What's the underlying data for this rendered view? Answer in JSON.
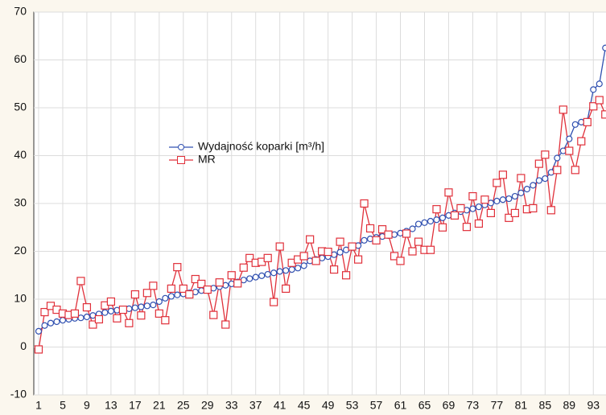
{
  "chart_data": {
    "type": "line",
    "x": [
      1,
      2,
      3,
      4,
      5,
      6,
      7,
      8,
      9,
      10,
      11,
      12,
      13,
      14,
      15,
      16,
      17,
      18,
      19,
      20,
      21,
      22,
      23,
      24,
      25,
      26,
      27,
      28,
      29,
      30,
      31,
      32,
      33,
      34,
      35,
      36,
      37,
      38,
      39,
      40,
      41,
      42,
      43,
      44,
      45,
      46,
      47,
      48,
      49,
      50,
      51,
      52,
      53,
      54,
      55,
      56,
      57,
      58,
      59,
      60,
      61,
      62,
      63,
      64,
      65,
      66,
      67,
      68,
      69,
      70,
      71,
      72,
      73,
      74,
      75,
      76,
      77,
      78,
      79,
      80,
      81,
      82,
      83,
      84,
      85,
      86,
      87,
      88,
      89,
      90,
      91,
      92,
      93,
      94,
      95
    ],
    "xlim": [
      0.2,
      95.1
    ],
    "xticks": [
      1,
      5,
      9,
      13,
      17,
      21,
      25,
      29,
      33,
      37,
      41,
      45,
      49,
      53,
      57,
      61,
      65,
      69,
      73,
      77,
      81,
      85,
      89,
      93
    ],
    "ylim": [
      -10,
      70
    ],
    "yticks": [
      -10,
      0,
      10,
      20,
      30,
      40,
      50,
      60,
      70
    ],
    "grid": true,
    "legend": "center-left",
    "series": [
      {
        "name": "Wydajność koparki [m³/h]",
        "color": "#3050b0",
        "marker": "circle",
        "values": [
          3.3,
          4.5,
          5.0,
          5.3,
          5.6,
          5.8,
          6.0,
          6.1,
          6.3,
          6.6,
          6.9,
          7.2,
          7.5,
          7.7,
          7.8,
          8.0,
          8.2,
          8.4,
          8.6,
          8.8,
          9.5,
          10.2,
          10.6,
          10.9,
          11.1,
          11.3,
          11.5,
          11.8,
          12.0,
          12.3,
          12.6,
          12.9,
          13.2,
          13.6,
          14.0,
          14.3,
          14.6,
          14.9,
          15.2,
          15.5,
          15.8,
          16.0,
          16.2,
          16.5,
          17.0,
          18.0,
          18.3,
          18.6,
          18.9,
          19.3,
          19.8,
          20.3,
          20.8,
          21.2,
          22.3,
          22.6,
          22.9,
          23.1,
          23.3,
          23.5,
          23.8,
          24.2,
          24.7,
          25.7,
          26.0,
          26.3,
          26.6,
          27.0,
          27.5,
          28.0,
          28.3,
          28.6,
          28.9,
          29.3,
          29.7,
          30.1,
          30.5,
          30.8,
          31.0,
          31.5,
          32.2,
          33.0,
          33.8,
          34.8,
          35.2,
          36.5,
          39.5,
          41.0,
          43.5,
          46.5,
          47.0,
          47.2,
          53.8,
          55.0,
          62.5
        ]
      },
      {
        "name": "MR",
        "color": "#e0303a",
        "marker": "square",
        "values": [
          -0.5,
          7.3,
          8.6,
          7.8,
          7.0,
          6.7,
          7.0,
          13.8,
          8.3,
          4.7,
          5.8,
          8.7,
          9.5,
          6.0,
          7.8,
          5.0,
          11.0,
          6.6,
          11.3,
          12.8,
          7.0,
          5.6,
          12.2,
          16.7,
          12.2,
          11.0,
          14.2,
          13.2,
          12.0,
          6.7,
          13.5,
          4.7,
          15.0,
          13.3,
          16.6,
          18.6,
          17.6,
          17.8,
          18.6,
          9.4,
          21.0,
          12.2,
          17.6,
          18.3,
          19.0,
          22.5,
          18.0,
          20.0,
          19.9,
          16.2,
          22.0,
          15.0,
          21.0,
          18.3,
          30.0,
          24.8,
          22.3,
          24.6,
          23.5,
          19.0,
          18.0,
          23.7,
          20.0,
          22.0,
          20.3,
          20.3,
          28.8,
          25.0,
          32.3,
          27.5,
          29.0,
          25.1,
          31.5,
          25.8,
          30.8,
          28.0,
          34.3,
          36.0,
          27.0,
          28.0,
          35.3,
          28.8,
          29.0,
          38.3,
          40.2,
          28.6,
          37.0,
          49.6,
          41.0,
          37.0,
          43.0,
          47.0,
          50.3,
          51.6,
          48.6
        ]
      }
    ]
  }
}
